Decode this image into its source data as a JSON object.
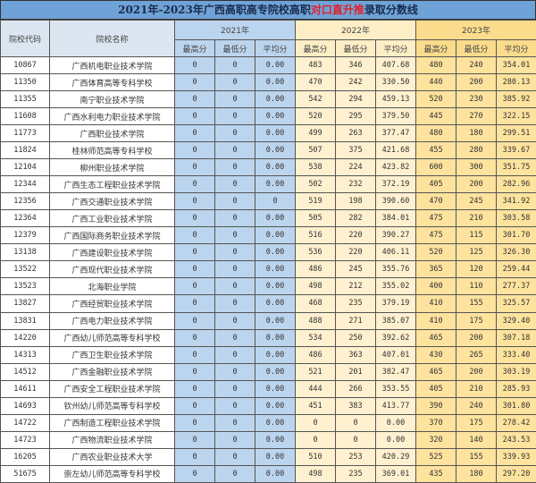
{
  "title": {
    "part1": "2021年-2023年广西高职高专院校高职",
    "highlight": "对口直升推",
    "part2": "录取分数线"
  },
  "colors": {
    "title_bg": "#6fa3d8",
    "y2021": "#bcd5ee",
    "y2022": "#fff1d0",
    "y2023": "#fde39e",
    "highlight": "#e0202a"
  },
  "headers": {
    "code": "院校代码",
    "name": "院校名称",
    "years": [
      "2021年",
      "2022年",
      "2023年"
    ],
    "sub": [
      "最高分",
      "最低分",
      "平均分"
    ]
  },
  "rows": [
    [
      "10867",
      "广西机电职业技术学院",
      "0",
      "0",
      "0.00",
      "483",
      "346",
      "407.68",
      "480",
      "240",
      "354.01"
    ],
    [
      "11350",
      "广西体育高等专科学校",
      "0",
      "0",
      "0.00",
      "470",
      "242",
      "330.50",
      "440",
      "200",
      "280.13"
    ],
    [
      "11355",
      "南宁职业技术学院",
      "0",
      "0",
      "0.00",
      "542",
      "294",
      "459.13",
      "520",
      "230",
      "385.92"
    ],
    [
      "11608",
      "广西水利电力职业技术学院",
      "0",
      "0",
      "0.00",
      "520",
      "295",
      "379.50",
      "445",
      "270",
      "322.15"
    ],
    [
      "11773",
      "广西职业技术学院",
      "0",
      "0",
      "0.00",
      "499",
      "263",
      "377.47",
      "480",
      "180",
      "299.51"
    ],
    [
      "11824",
      "桂林师范高等专科学校",
      "0",
      "0",
      "0.00",
      "507",
      "375",
      "421.68",
      "455",
      "280",
      "339.67"
    ],
    [
      "12104",
      "柳州职业技术学院",
      "0",
      "0",
      "0.00",
      "538",
      "224",
      "423.82",
      "600",
      "300",
      "351.75"
    ],
    [
      "12344",
      "广西生态工程职业技术学院",
      "0",
      "0",
      "0.00",
      "502",
      "232",
      "372.19",
      "405",
      "200",
      "282.96"
    ],
    [
      "12356",
      "广西交通职业技术学院",
      "0",
      "0",
      "0",
      "519",
      "198",
      "390.60",
      "470",
      "245",
      "341.92"
    ],
    [
      "12364",
      "广西工业职业技术学院",
      "0",
      "0",
      "0.00",
      "505",
      "282",
      "384.01",
      "475",
      "210",
      "303.58"
    ],
    [
      "12379",
      "广西国际商务职业技术学院",
      "0",
      "0",
      "0.00",
      "516",
      "220",
      "390.27",
      "475",
      "115",
      "301.70"
    ],
    [
      "13138",
      "广西建设职业技术学院",
      "0",
      "0",
      "0.00",
      "536",
      "220",
      "406.11",
      "520",
      "125",
      "326.30"
    ],
    [
      "13522",
      "广西现代职业技术学院",
      "0",
      "0",
      "0.00",
      "486",
      "245",
      "355.76",
      "365",
      "120",
      "259.44"
    ],
    [
      "13523",
      "北海职业学院",
      "0",
      "0",
      "0.00",
      "498",
      "212",
      "355.02",
      "400",
      "110",
      "277.37"
    ],
    [
      "13827",
      "广西经贸职业技术学院",
      "0",
      "0",
      "0.00",
      "468",
      "235",
      "379.19",
      "410",
      "155",
      "325.57"
    ],
    [
      "13831",
      "广西电力职业技术学院",
      "0",
      "0",
      "0.00",
      "488",
      "271",
      "385.07",
      "410",
      "175",
      "329.40"
    ],
    [
      "14220",
      "广西幼儿师范高等专科学校",
      "0",
      "0",
      "0.00",
      "534",
      "250",
      "392.62",
      "465",
      "200",
      "307.18"
    ],
    [
      "14313",
      "广西卫生职业技术学院",
      "0",
      "0",
      "0.00",
      "486",
      "363",
      "407.01",
      "430",
      "265",
      "333.40"
    ],
    [
      "14512",
      "广西金融职业技术学院",
      "0",
      "0",
      "0.00",
      "521",
      "201",
      "382.47",
      "465",
      "200",
      "303.19"
    ],
    [
      "14611",
      "广西安全工程职业技术学院",
      "0",
      "0",
      "0.00",
      "444",
      "266",
      "353.55",
      "405",
      "210",
      "285.93"
    ],
    [
      "14693",
      "钦州幼儿师范高等专科学校",
      "0",
      "0",
      "0.00",
      "451",
      "383",
      "413.77",
      "390",
      "240",
      "301.80"
    ],
    [
      "14722",
      "广西制造工程职业技术学院",
      "0",
      "0",
      "0.00",
      "0",
      "0",
      "0.00",
      "370",
      "175",
      "278.42"
    ],
    [
      "14723",
      "广西物流职业技术学院",
      "0",
      "0",
      "0.00",
      "0",
      "0",
      "0.00",
      "320",
      "140",
      "243.53"
    ],
    [
      "16205",
      "广西农业职业技术大学",
      "0",
      "0",
      "0.00",
      "510",
      "253",
      "420.29",
      "525",
      "155",
      "339.93"
    ],
    [
      "51675",
      "崇左幼儿师范高等专科学校",
      "0",
      "0",
      "0.00",
      "498",
      "235",
      "369.01",
      "435",
      "180",
      "297.20"
    ]
  ]
}
